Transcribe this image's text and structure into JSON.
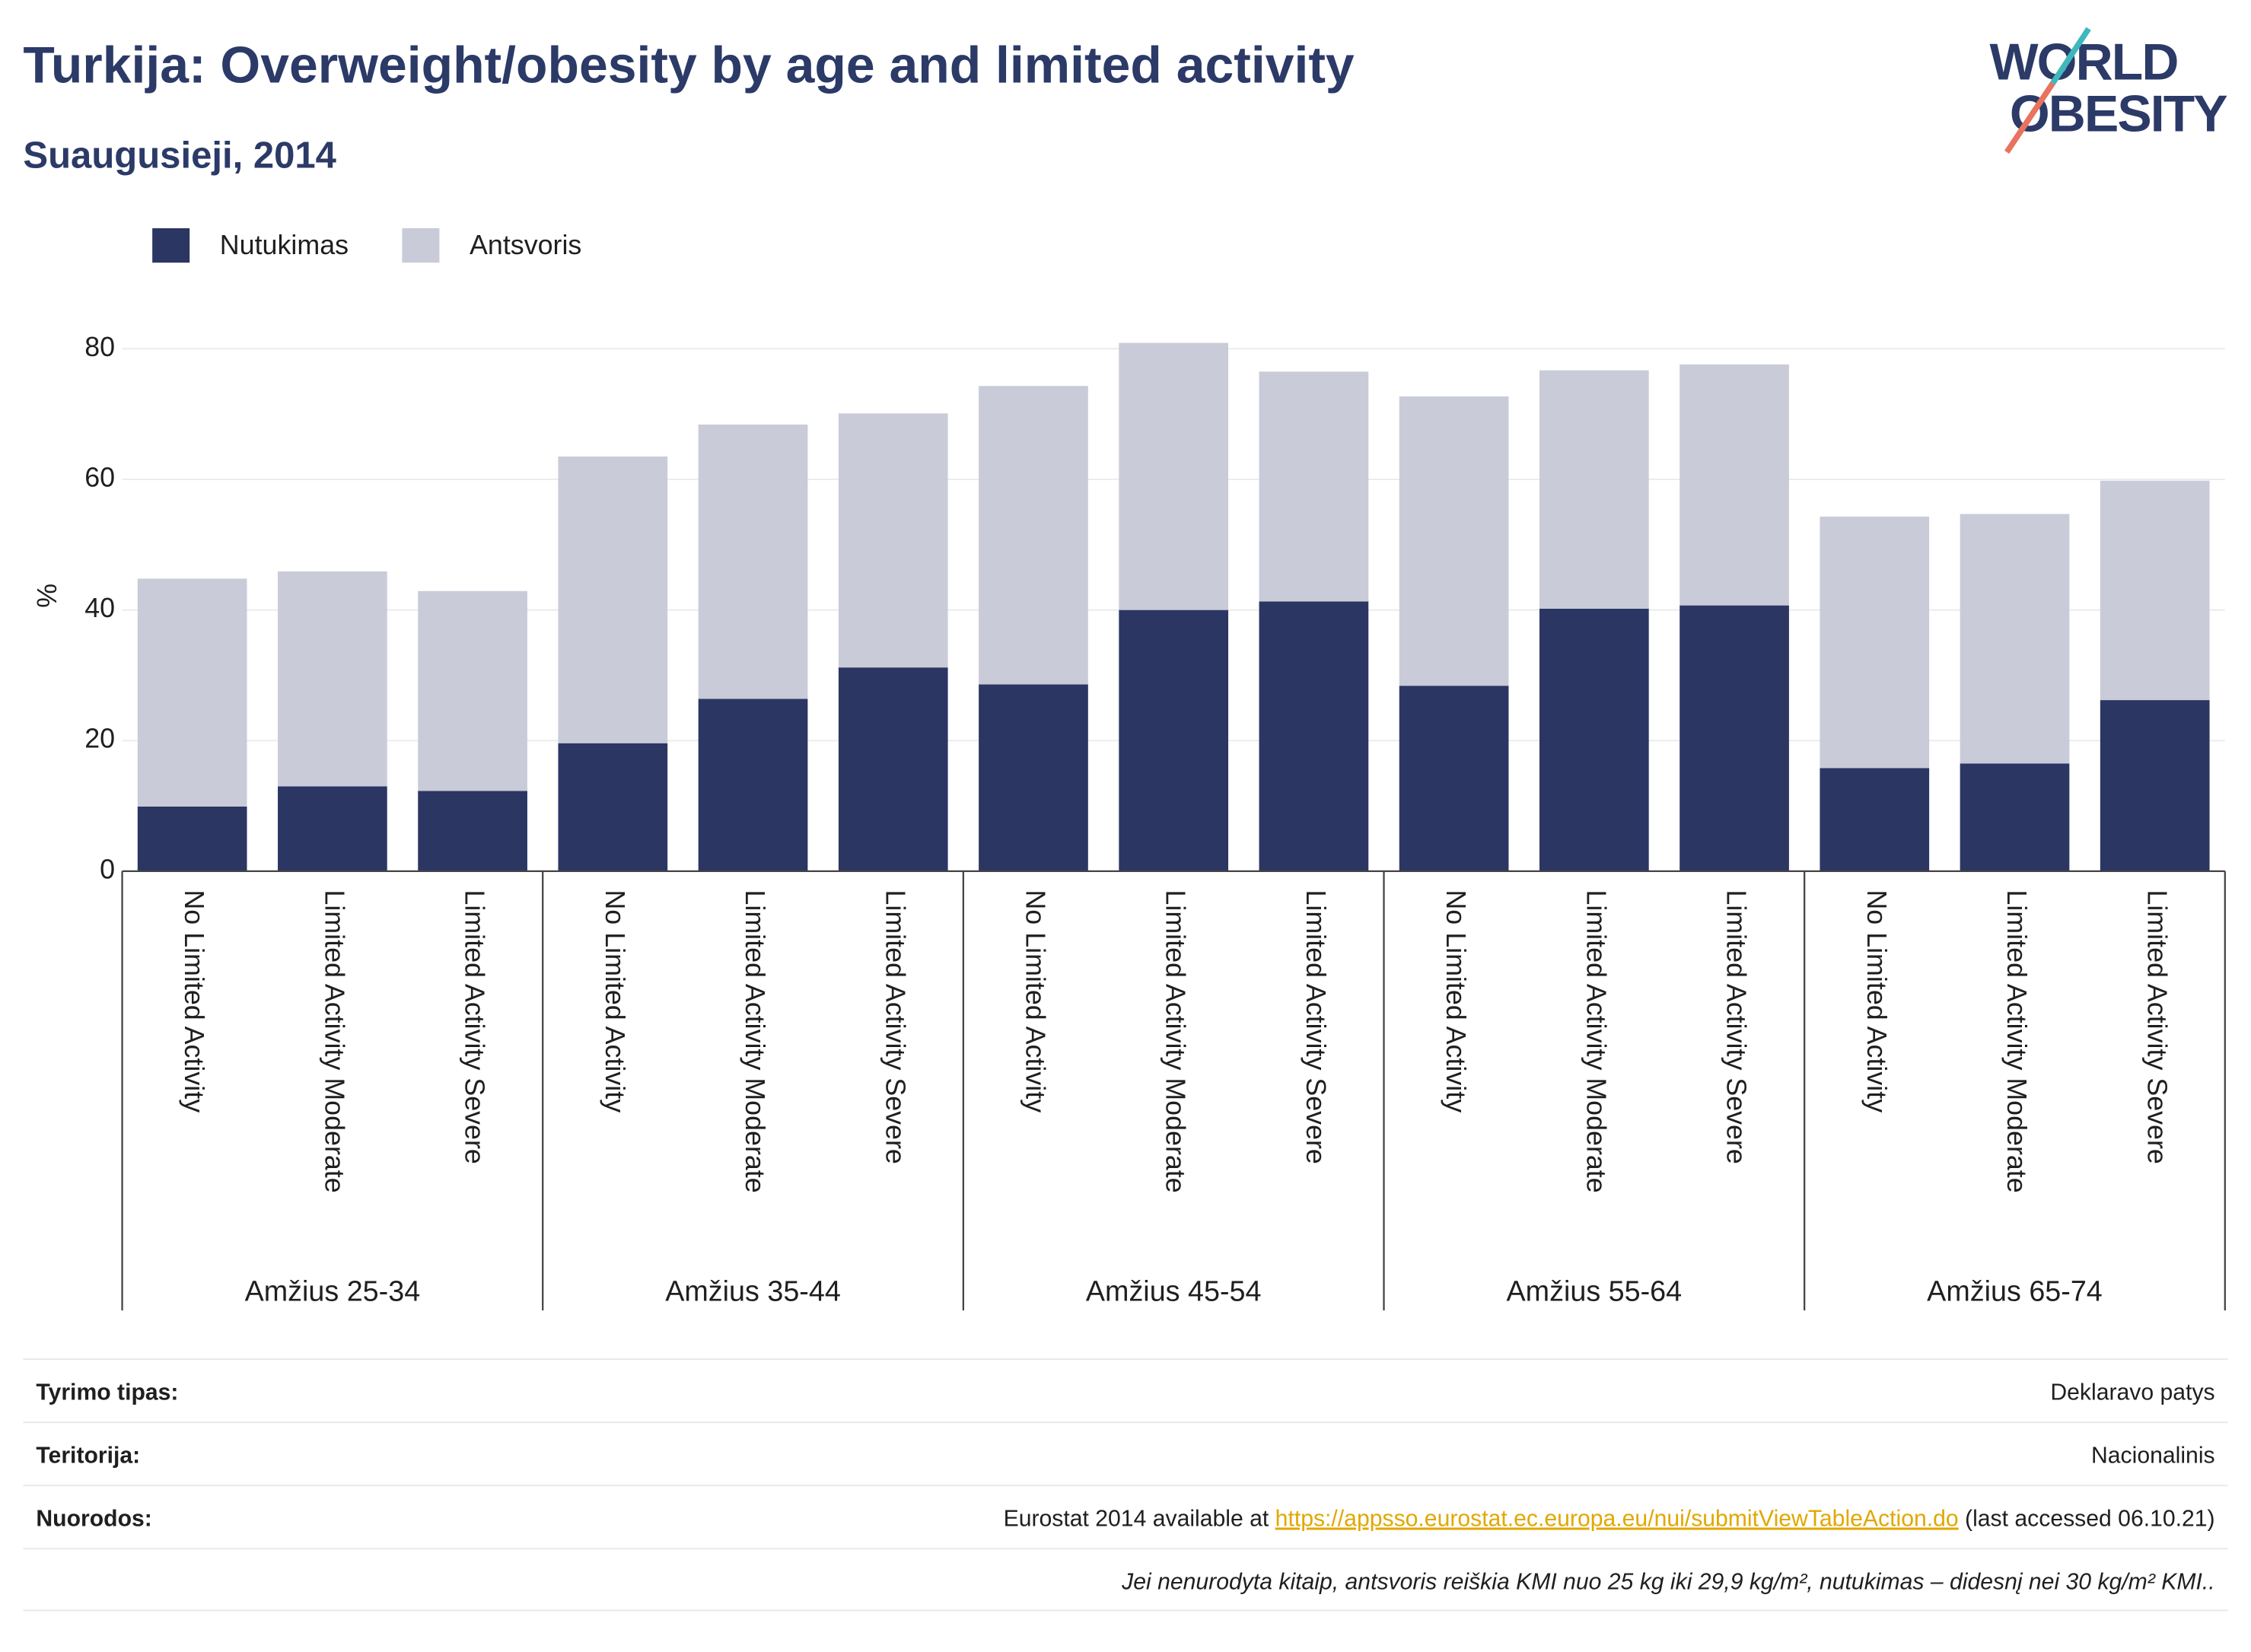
{
  "chart_data": {
    "type": "stacked_bar",
    "title": "Turkija: Overweight/obesity by age and limited activity",
    "subtitle": "Suaugusieji, 2014",
    "y_label": "%",
    "groups": [
      "Amžius 25-34",
      "Amžius 35-44",
      "Amžius 45-54",
      "Amžius 55-64",
      "Amžius 65-74"
    ],
    "categories": [
      "No Limited Activity",
      "Limited Activity Moderate",
      "Limited Activity Severe",
      "No Limited Activity",
      "Limited Activity Moderate",
      "Limited Activity Severe",
      "No Limited Activity",
      "Limited Activity Moderate",
      "Limited Activity Severe",
      "No Limited Activity",
      "Limited Activity Moderate",
      "Limited Activity Severe",
      "No Limited Activity",
      "Limited Activity Moderate",
      "Limited Activity Severe"
    ],
    "series": [
      {
        "name": "Nutukimas",
        "color": "#2b3663",
        "values": [
          9.9,
          13.0,
          12.3,
          19.6,
          26.4,
          31.2,
          28.6,
          40.0,
          41.3,
          28.4,
          40.2,
          40.7,
          15.8,
          16.5,
          26.2
        ]
      },
      {
        "name": "Antsvoris",
        "color": "#c9cbd8",
        "values": [
          34.9,
          32.9,
          30.6,
          43.9,
          42.0,
          38.9,
          45.7,
          40.9,
          35.2,
          44.3,
          36.5,
          36.9,
          38.5,
          38.2,
          33.6
        ]
      }
    ],
    "ylim": [
      0,
      80
    ],
    "yticks": [
      0,
      20,
      40,
      60,
      80
    ],
    "grid": true,
    "logo": [
      "WORLD",
      "OBESITY"
    ]
  },
  "table": {
    "rows": [
      [
        "Tyrimo tipas:",
        "Deklaravo patys"
      ],
      [
        "Teritorija:",
        "Nacionalinis"
      ],
      [
        "Nuorodos:",
        [
          "Eurostat 2014 available at ",
          "https://appsso.eurostat.ec.europa.eu/nui/submitViewTableAction.do",
          " (last accessed 06.10.21)"
        ]
      ]
    ],
    "note": "Jei nenurodyta kitaip, antsvoris reiškia KMI nuo 25 kg iki 29,9 kg/m², nutukimas – didesnį nei 30 kg/m² KMI.."
  }
}
